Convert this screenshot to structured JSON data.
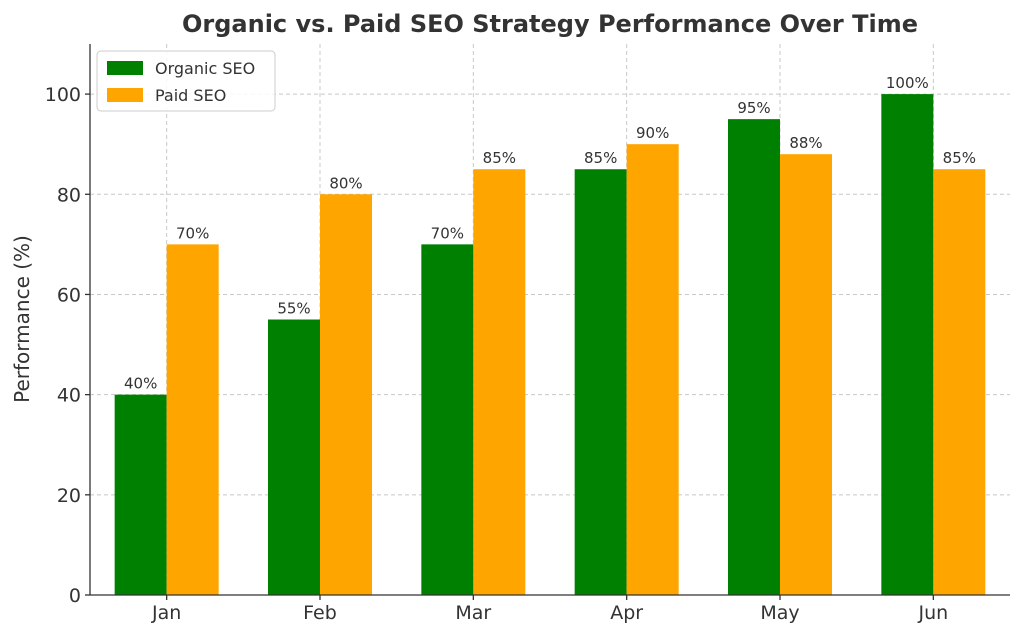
{
  "chart_data": {
    "type": "bar",
    "title": "Organic vs. Paid SEO Strategy Performance Over Time",
    "xlabel": "",
    "ylabel": "Performance (%)",
    "categories": [
      "Jan",
      "Feb",
      "Mar",
      "Apr",
      "May",
      "Jun"
    ],
    "series": [
      {
        "name": "Organic SEO",
        "values": [
          40,
          55,
          70,
          85,
          95,
          100
        ],
        "color": "#008000"
      },
      {
        "name": "Paid SEO",
        "values": [
          70,
          80,
          85,
          90,
          88,
          85
        ],
        "color": "#FFA500"
      }
    ],
    "data_labels": {
      "Organic SEO": [
        "40%",
        "55%",
        "70%",
        "85%",
        "95%",
        "100%"
      ],
      "Paid SEO": [
        "70%",
        "80%",
        "85%",
        "90%",
        "88%",
        "85%"
      ]
    },
    "ylim": [
      0,
      110
    ],
    "yticks": [
      0,
      20,
      40,
      60,
      80,
      100
    ],
    "grid": true,
    "legend_position": "top-left"
  }
}
